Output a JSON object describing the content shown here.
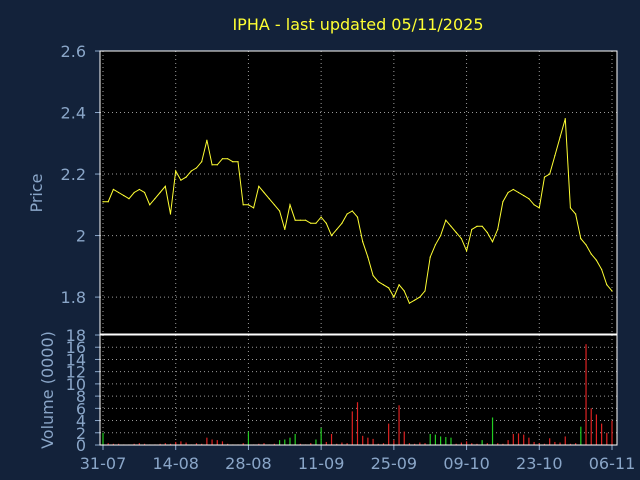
{
  "colors": {
    "background": "#13223a",
    "plot_background": "#000000",
    "title": "#ffff33",
    "axis_text": "#8aa6c8",
    "price_line": "#ffff33",
    "volume_up": "#22cc22",
    "volume_down": "#dd2222",
    "grid": "#9a9a9a"
  },
  "chart_data": [
    {
      "type": "line",
      "title": "IPHA - last updated 05/11/2025",
      "ylabel": "Price",
      "ylim": [
        1.68,
        2.6
      ],
      "yticks": [
        "2.6",
        "2.4",
        "2.2",
        "2",
        "1.8"
      ],
      "ytick_values": [
        2.6,
        2.4,
        2.2,
        2.0,
        1.8
      ],
      "grid": true,
      "series": [
        {
          "values": [
            2.11,
            2.11,
            2.15,
            2.14,
            2.13,
            2.12,
            2.14,
            2.15,
            2.14,
            2.1,
            2.12,
            2.14,
            2.16,
            2.07,
            2.21,
            2.18,
            2.19,
            2.21,
            2.22,
            2.24,
            2.31,
            2.23,
            2.23,
            2.25,
            2.25,
            2.24,
            2.24,
            2.1,
            2.1,
            2.09,
            2.16,
            2.14,
            2.12,
            2.1,
            2.08,
            2.02,
            2.1,
            2.05,
            2.05,
            2.05,
            2.04,
            2.04,
            2.06,
            2.04,
            2.0,
            2.02,
            2.04,
            2.07,
            2.08,
            2.06,
            1.98,
            1.93,
            1.87,
            1.85,
            1.84,
            1.83,
            1.8,
            1.84,
            1.82,
            1.78,
            1.79,
            1.8,
            1.82,
            1.93,
            1.97,
            2.0,
            2.05,
            2.03,
            2.01,
            1.99,
            1.95,
            2.02,
            2.03,
            2.03,
            2.01,
            1.98,
            2.02,
            2.11,
            2.14,
            2.15,
            2.14,
            2.13,
            2.12,
            2.1,
            2.09,
            2.19,
            2.2,
            2.26,
            2.32,
            2.38,
            2.09,
            2.07,
            1.99,
            1.97,
            1.94,
            1.92,
            1.89,
            1.84,
            1.82
          ]
        }
      ]
    },
    {
      "type": "bar",
      "ylabel": "Volume (0000)",
      "ylim": [
        0,
        18
      ],
      "yticks": [
        "18",
        "16",
        "14",
        "12",
        "10",
        "8",
        "6",
        "4",
        "2",
        "0"
      ],
      "ytick_values": [
        18,
        16,
        14,
        12,
        10,
        8,
        6,
        4,
        2,
        0
      ],
      "xticks": [
        "31-07",
        "14-08",
        "28-08",
        "11-09",
        "25-09",
        "09-10",
        "23-10",
        "06-11"
      ],
      "xtick_index": [
        0,
        14,
        28,
        42,
        56,
        70,
        84,
        98
      ],
      "grid": true,
      "series": [
        {
          "values": [
            2.0,
            0.3,
            0.2,
            0.2,
            0.1,
            0.1,
            0.2,
            0.3,
            0.2,
            0.1,
            0.1,
            0.2,
            0.3,
            0.2,
            0.5,
            0.6,
            0.4,
            0.1,
            0.3,
            0.2,
            1.2,
            0.9,
            0.8,
            0.6,
            0.2,
            0.1,
            0.1,
            0.3,
            2.2,
            0.1,
            0.2,
            0.3,
            0.1,
            0.2,
            0.8,
            0.9,
            1.2,
            1.8,
            0.2,
            0.1,
            0.3,
            0.9,
            2.8,
            0.5,
            1.8,
            0.2,
            0.4,
            0.3,
            5.5,
            7.0,
            1.5,
            1.2,
            1.0,
            0.2,
            0.3,
            3.5,
            0.8,
            6.5,
            2.2,
            0.3,
            0.2,
            0.4,
            0.3,
            1.8,
            1.7,
            1.4,
            1.3,
            1.2,
            0.2,
            0.4,
            0.6,
            0.3,
            0.2,
            0.8,
            0.3,
            4.5,
            0.3,
            0.2,
            0.8,
            1.8,
            1.9,
            1.7,
            1.2,
            0.5,
            0.3,
            0.2,
            1.1,
            0.5,
            0.4,
            1.4,
            0.2,
            0.3,
            3.0,
            16.5,
            6.0,
            5.0,
            3.5,
            2.0,
            4.0
          ],
          "direction": [
            "u",
            "d",
            "d",
            "d",
            "d",
            "d",
            "d",
            "d",
            "d",
            "d",
            "d",
            "d",
            "d",
            "d",
            "d",
            "d",
            "d",
            "d",
            "d",
            "d",
            "d",
            "d",
            "d",
            "d",
            "d",
            "d",
            "d",
            "d",
            "u",
            "d",
            "d",
            "d",
            "d",
            "d",
            "u",
            "u",
            "u",
            "u",
            "d",
            "d",
            "d",
            "u",
            "u",
            "d",
            "d",
            "d",
            "d",
            "d",
            "d",
            "d",
            "d",
            "d",
            "d",
            "d",
            "d",
            "d",
            "d",
            "d",
            "d",
            "d",
            "d",
            "d",
            "d",
            "u",
            "u",
            "u",
            "u",
            "u",
            "d",
            "d",
            "d",
            "d",
            "d",
            "u",
            "d",
            "u",
            "d",
            "d",
            "d",
            "d",
            "d",
            "d",
            "d",
            "d",
            "d",
            "d",
            "d",
            "d",
            "d",
            "d",
            "d",
            "d",
            "u",
            "d",
            "d",
            "d",
            "d",
            "d",
            "d"
          ]
        }
      ]
    }
  ]
}
